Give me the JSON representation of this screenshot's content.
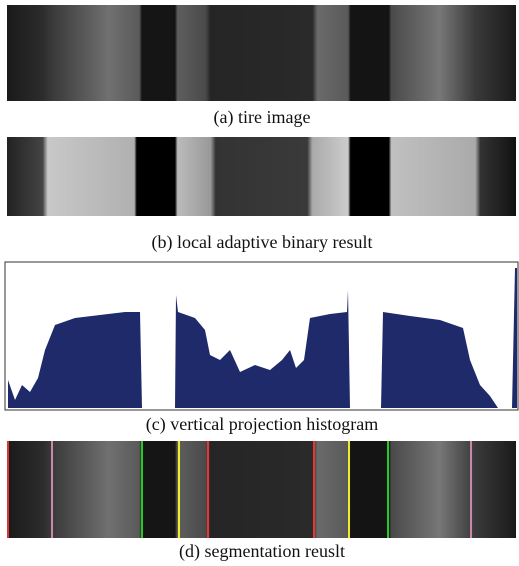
{
  "figure": {
    "captions": [
      "(a) tire image",
      "(b) local adaptive binary result",
      "(c) vertical projection histogram",
      "(d) segmentation reuslt"
    ]
  }
}
